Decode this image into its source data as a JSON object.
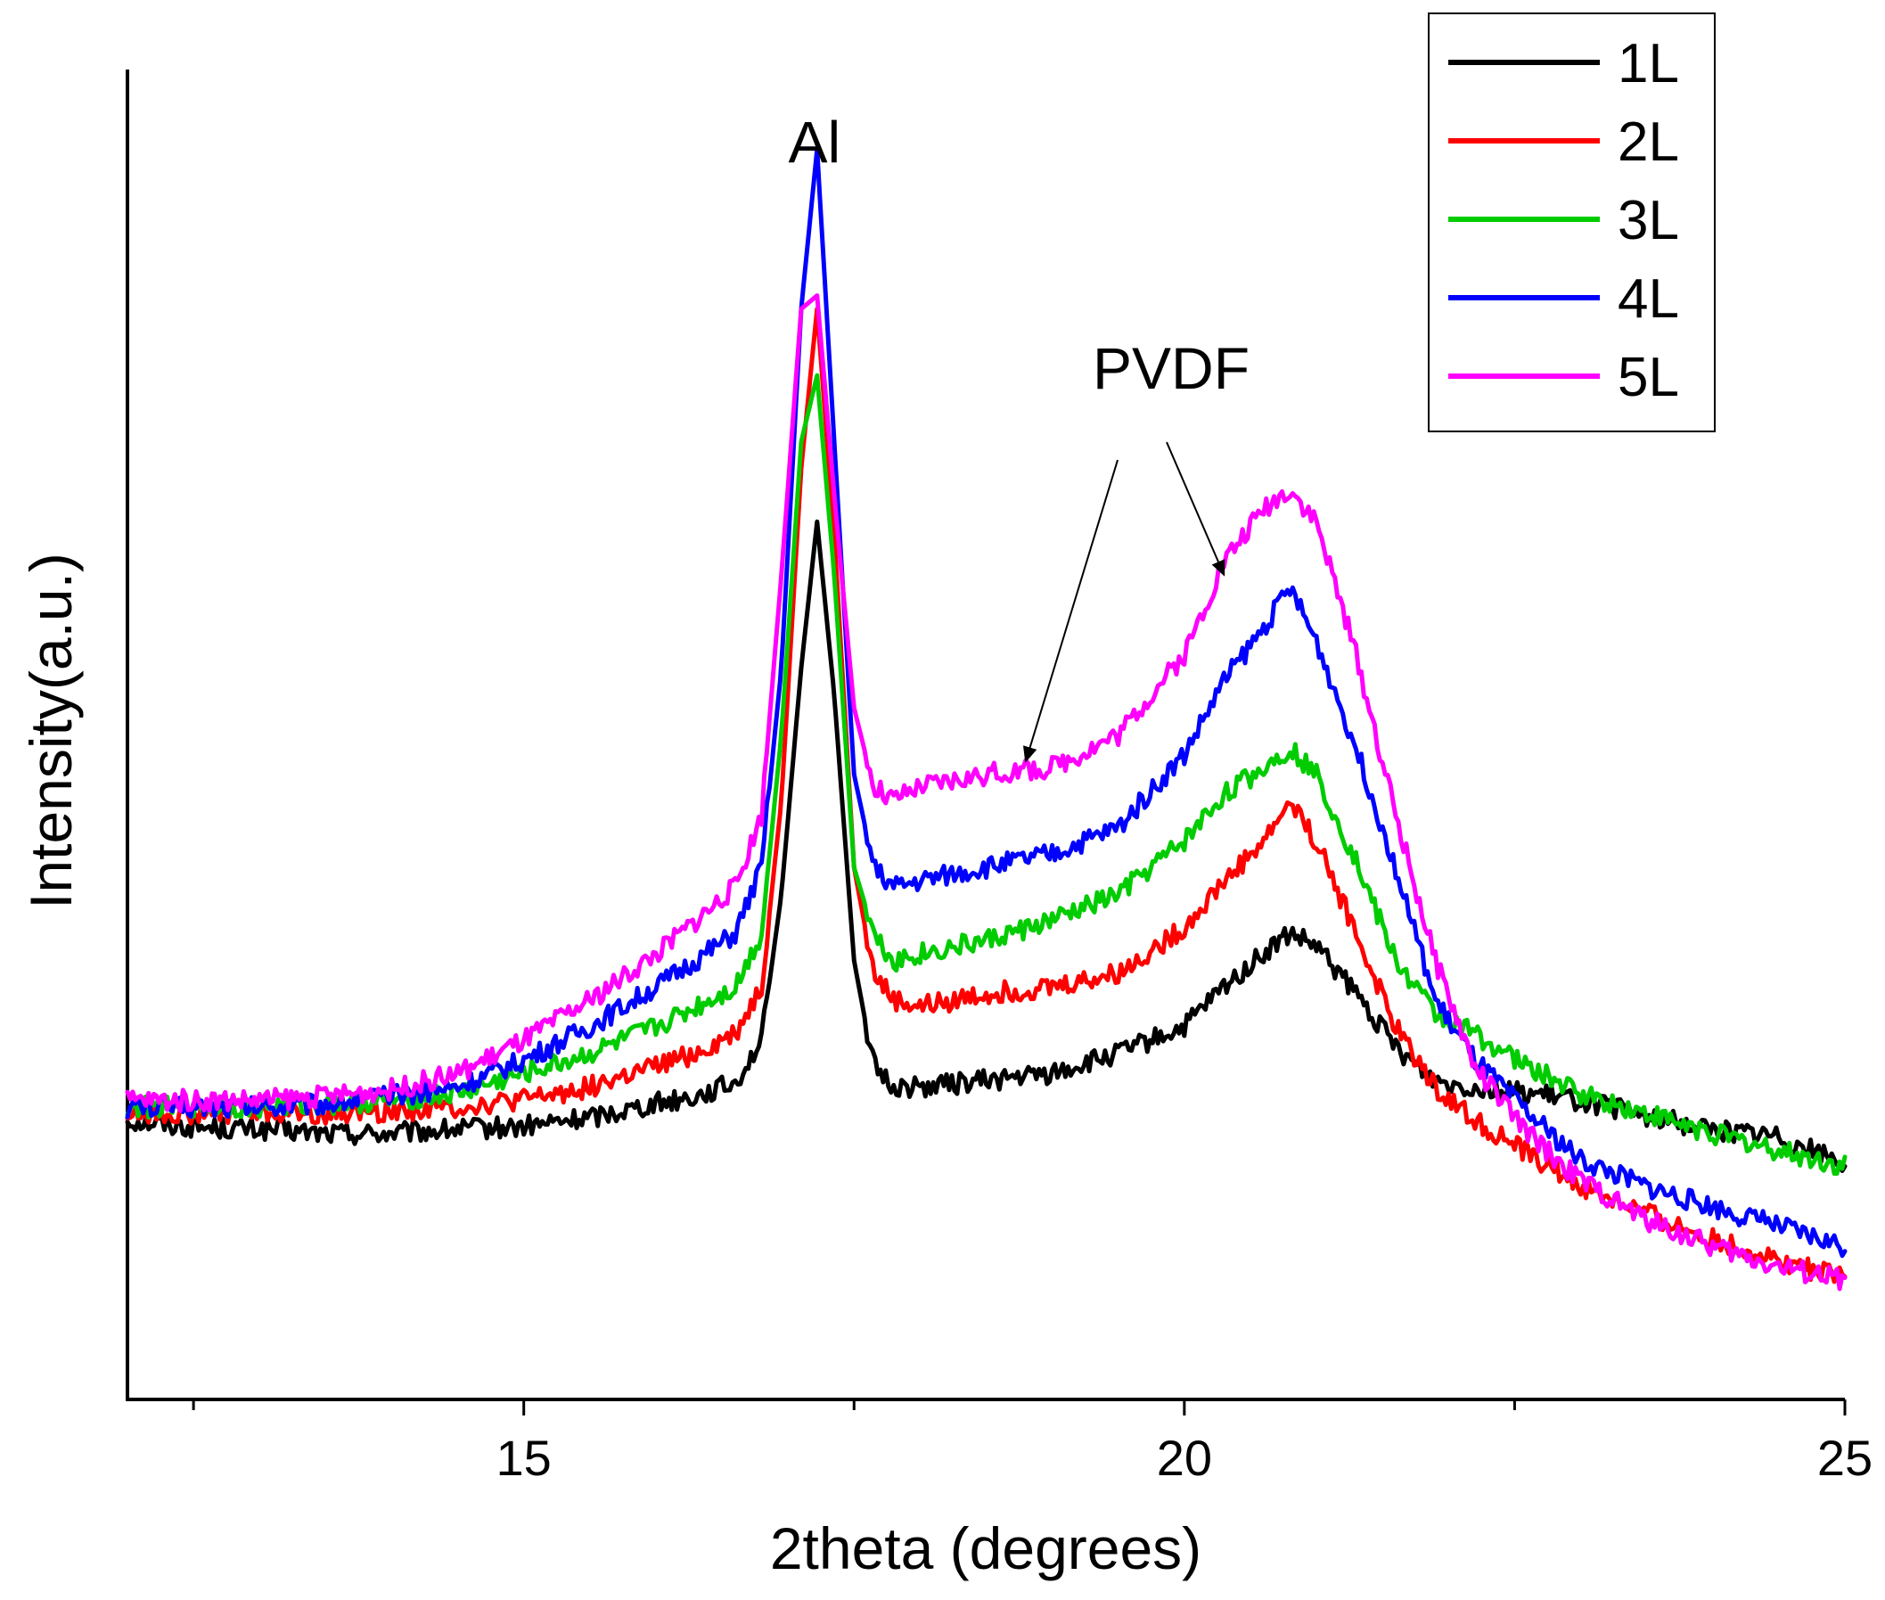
{
  "chart_data": {
    "type": "line",
    "title": "",
    "xlabel": "2theta (degrees)",
    "ylabel": "Intensity(a.u.)",
    "xlim": [
      12,
      25
    ],
    "ylim": [
      0,
      100
    ],
    "xticks": [
      15,
      20,
      25
    ],
    "xtick_labels": [
      "15",
      "20",
      "25"
    ],
    "minor_xticks": [
      12.5,
      17.5,
      22.5
    ],
    "yticks": [],
    "grid": false,
    "legend_position": "top-right",
    "annotations": [
      {
        "text": "Al",
        "x": 17.2,
        "y": 93
      },
      {
        "text": "PVDF",
        "x": 19.9,
        "y": 76,
        "arrows_to": [
          [
            18.8,
            48
          ],
          [
            20.3,
            62
          ]
        ]
      }
    ],
    "x": [
      12,
      12.5,
      13,
      13.5,
      14,
      14.5,
      15,
      15.5,
      16,
      16.3,
      16.6,
      16.8,
      16.95,
      17.1,
      17.22,
      17.35,
      17.5,
      17.65,
      17.8,
      18,
      18.5,
      19,
      19.5,
      20,
      20.3,
      20.6,
      20.8,
      21,
      21.3,
      21.6,
      21.9,
      22.2,
      22.6,
      23,
      23.5,
      24,
      24.5,
      25
    ],
    "series": [
      {
        "name": "1L",
        "color": "#000000",
        "values": [
          21,
          20.5,
          20.3,
          20,
          20,
          20.3,
          20.5,
          21.2,
          22.3,
          22.8,
          23.8,
          27,
          38,
          55,
          66,
          53,
          33,
          25,
          23.5,
          23.5,
          24,
          24.5,
          26,
          28,
          31,
          33.5,
          35,
          34,
          30.5,
          26.5,
          24,
          23.5,
          23,
          22.5,
          21.3,
          20.3,
          19.8,
          17.8
        ]
      },
      {
        "name": "2L",
        "color": "#ff0000",
        "values": [
          21.5,
          21.5,
          21.5,
          21.5,
          21.7,
          22,
          22.5,
          23.5,
          25,
          26,
          27.5,
          31,
          45,
          70,
          82,
          65,
          40,
          32,
          30,
          29.5,
          30.5,
          31,
          32,
          35.5,
          39,
          42,
          45,
          42,
          35,
          28,
          23.5,
          21,
          18.5,
          16,
          14,
          12,
          10.5,
          9
        ]
      },
      {
        "name": "3L",
        "color": "#00cc00",
        "values": [
          22,
          22,
          22,
          22.2,
          22.5,
          23,
          24.5,
          26,
          28,
          29.5,
          31,
          35,
          50,
          72,
          77,
          62,
          40,
          35,
          33,
          33.5,
          34.5,
          36,
          38,
          42,
          45.5,
          47.5,
          49,
          47,
          40.5,
          33,
          29,
          27.5,
          25,
          23,
          21.5,
          20,
          18.7,
          17.5
        ]
      },
      {
        "name": "4L",
        "color": "#0000ff",
        "values": [
          22,
          22,
          22,
          22.3,
          22.8,
          23.5,
          25.5,
          28,
          31,
          33,
          35,
          40,
          55,
          82,
          94,
          72,
          47,
          40,
          38.5,
          39,
          40,
          41,
          43,
          48.5,
          54,
          58,
          61,
          57,
          49,
          40,
          30,
          25.5,
          21.5,
          18,
          16,
          14.5,
          13,
          11.5
        ]
      },
      {
        "name": "5L",
        "color": "#ff00ff",
        "values": [
          22.5,
          22.5,
          22.5,
          22.8,
          23.3,
          24.5,
          27,
          30,
          33.5,
          36,
          38.5,
          44,
          62,
          82,
          83,
          68,
          52,
          46,
          45,
          46,
          47,
          47.5,
          50,
          56,
          63,
          67,
          68.5,
          66,
          56,
          44,
          33,
          25,
          20,
          16.5,
          13.5,
          11.5,
          10,
          9
        ]
      }
    ]
  }
}
